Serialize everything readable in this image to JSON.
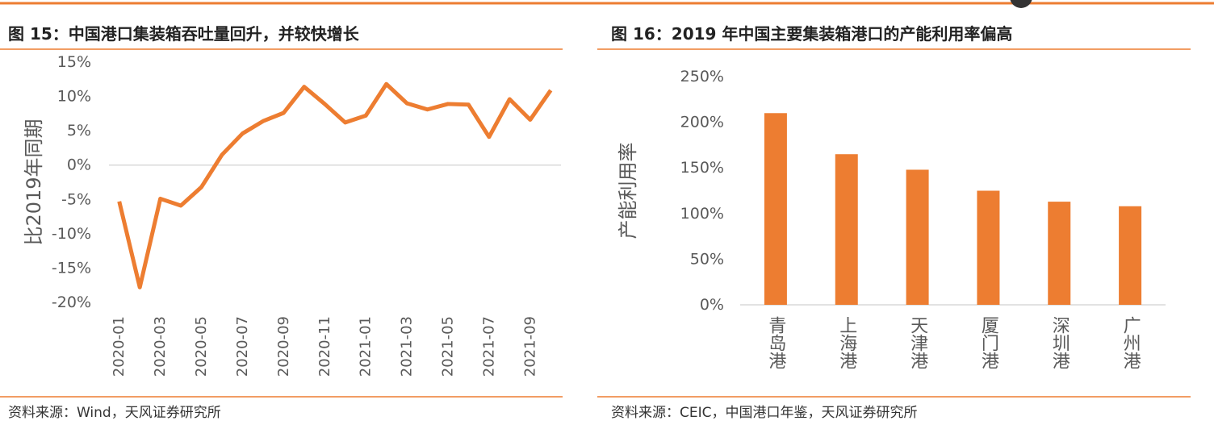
{
  "chart_data": [
    {
      "type": "line",
      "title": "图 15：中国港口集装箱吞吐量回升，并较快增长",
      "source": "资料来源：Wind，天风证券研究所",
      "y_label": "比2019年同期",
      "categories": [
        "2020-01",
        null,
        "2020-03",
        null,
        "2020-05",
        null,
        "2020-07",
        null,
        "2020-09",
        null,
        "2020-11",
        null,
        "2021-01",
        null,
        "2021-03",
        null,
        "2021-05",
        null,
        "2021-07",
        null,
        "2021-09",
        null
      ],
      "values": [
        -5.3,
        -17.8,
        -4.9,
        -5.9,
        -3.2,
        1.5,
        4.6,
        6.4,
        7.6,
        11.4,
        8.9,
        6.2,
        7.2,
        11.8,
        9.0,
        8.1,
        8.9,
        8.8,
        4.1,
        9.6,
        6.6,
        10.9
      ],
      "color": "#ED7D31",
      "ylim": [
        -20,
        15
      ],
      "yticks": [
        {
          "value": -20,
          "label": "-20%"
        },
        {
          "value": -15,
          "label": "-15%"
        },
        {
          "value": -10,
          "label": "-10%"
        },
        {
          "value": -5,
          "label": "-5%"
        },
        {
          "value": 0,
          "label": "0%"
        },
        {
          "value": 5,
          "label": "5%"
        },
        {
          "value": 10,
          "label": "10%"
        },
        {
          "value": 15,
          "label": "15%"
        }
      ],
      "grid": false
    },
    {
      "type": "bar",
      "title": "图 16：2019 年中国主要集装箱港口的产能利用率偏高",
      "source": "资料来源：CEIC，中国港口年鉴，天风证券研究所",
      "y_label": "产能利用率",
      "categories": [
        "青岛港",
        "上海港",
        "天津港",
        "厦门港",
        "深圳港",
        "广州港"
      ],
      "values": [
        210,
        165,
        148,
        125,
        113,
        108
      ],
      "color": "#ED7D31",
      "ylim": [
        0,
        250
      ],
      "yticks": [
        {
          "value": 0,
          "label": "0%"
        },
        {
          "value": 50,
          "label": "50%"
        },
        {
          "value": 100,
          "label": "100%"
        },
        {
          "value": 150,
          "label": "150%"
        },
        {
          "value": 200,
          "label": "200%"
        },
        {
          "value": 250,
          "label": "250%"
        }
      ],
      "grid": false
    }
  ]
}
